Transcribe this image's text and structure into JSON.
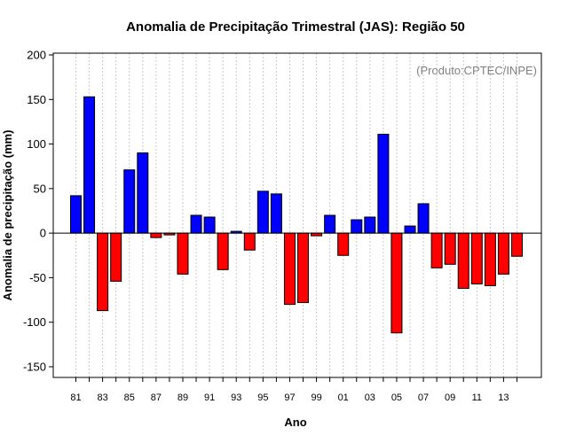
{
  "chart_data": {
    "type": "bar",
    "title": "Anomalia de Precipitação Trimestral (JAS): Região 50",
    "xlabel": "Ano",
    "ylabel": "Anomalia de precipitação (mm)",
    "annotation": "(Produto:CPTEC/INPE)",
    "ylim": [
      -162,
      202
    ],
    "yticks": [
      200,
      150,
      100,
      50,
      0,
      -50,
      -100,
      -150
    ],
    "xtick_labels": [
      "81",
      "83",
      "85",
      "87",
      "89",
      "91",
      "93",
      "95",
      "97",
      "99",
      "01",
      "03",
      "05",
      "07",
      "09",
      "11",
      "13"
    ],
    "years": [
      1981,
      1982,
      1983,
      1984,
      1985,
      1986,
      1987,
      1988,
      1989,
      1990,
      1991,
      1992,
      1993,
      1994,
      1995,
      1996,
      1997,
      1998,
      1999,
      2000,
      2001,
      2002,
      2003,
      2004,
      2005,
      2006,
      2007,
      2008,
      2009,
      2010,
      2011,
      2012,
      2013,
      2014
    ],
    "values": [
      42,
      153,
      -87,
      -54,
      71,
      90,
      -5,
      -2,
      -46,
      20,
      18,
      -41,
      2,
      -19,
      47,
      44,
      -80,
      -78,
      -3,
      20,
      -25,
      15,
      18,
      111,
      -112,
      8,
      33,
      -39,
      -35,
      -62,
      -57,
      -59,
      -46,
      -26
    ],
    "colors": {
      "positive": "#0000ff",
      "negative": "#ff0000"
    },
    "grid": "vertical-dotted"
  }
}
